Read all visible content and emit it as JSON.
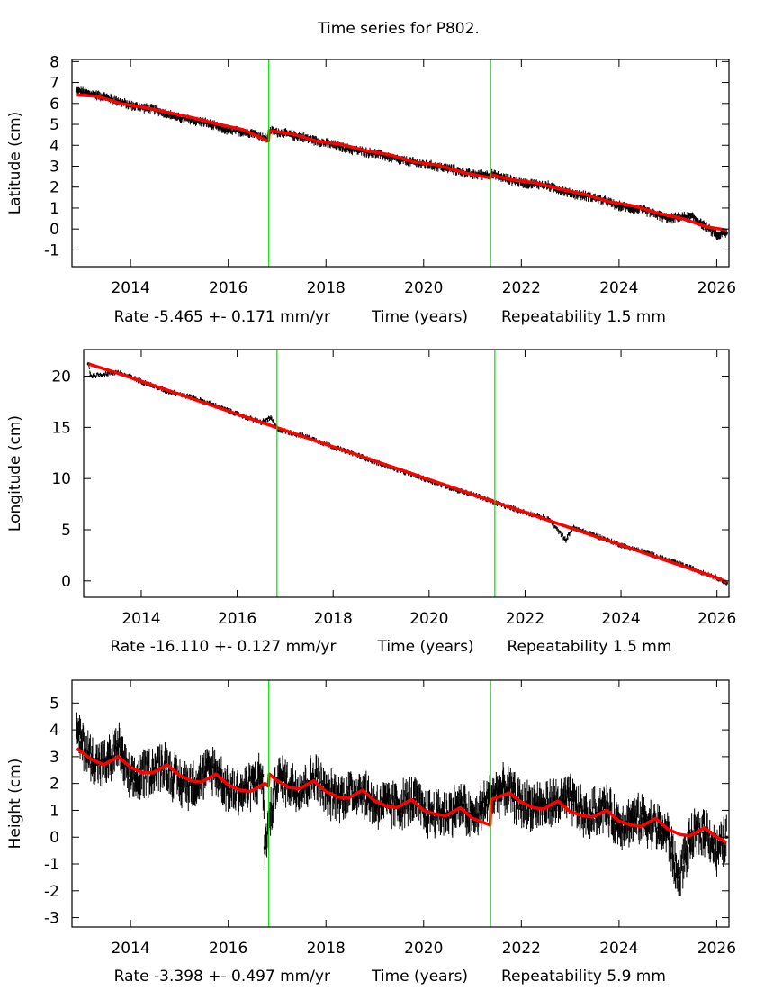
{
  "title": "Time series for P802.",
  "chart_data": [
    {
      "type": "scatter",
      "component": "latitude",
      "ylabel": "Latitude (cm)",
      "xlabel": "Time (years)",
      "rate_text": "Rate -5.465 +- 0.171 mm/yr",
      "repeatability_text": "Repeatability 1.5 mm",
      "xlim": [
        2012.8,
        2026.25
      ],
      "ylim": [
        -1.8,
        8.1
      ],
      "xticks": [
        2014,
        2016,
        2018,
        2020,
        2022,
        2024,
        2026
      ],
      "yticks": [
        -1,
        0,
        1,
        2,
        3,
        4,
        5,
        6,
        7,
        8
      ],
      "break_lines": [
        2016.83,
        2021.37
      ],
      "series": [
        {
          "name": "observations",
          "color": "#000000",
          "x": [
            2012.9,
            2013.5,
            2014.0,
            2014.5,
            2015.0,
            2015.5,
            2016.0,
            2016.5,
            2016.8,
            2016.85,
            2017.5,
            2018.0,
            2018.5,
            2019.0,
            2019.5,
            2020.0,
            2020.5,
            2021.0,
            2021.35,
            2021.4,
            2022.0,
            2022.5,
            2023.0,
            2023.5,
            2024.0,
            2024.5,
            2025.0,
            2025.5,
            2026.0,
            2026.2
          ],
          "y": [
            6.6,
            6.3,
            5.9,
            5.7,
            5.3,
            5.1,
            4.7,
            4.6,
            4.3,
            4.7,
            4.4,
            4.1,
            3.8,
            3.6,
            3.3,
            3.1,
            2.9,
            2.6,
            2.6,
            2.6,
            2.2,
            2.1,
            1.7,
            1.5,
            1.1,
            0.9,
            0.5,
            0.6,
            -0.3,
            -0.2
          ]
        },
        {
          "name": "model",
          "color": "#ff0000",
          "x": [
            2012.9,
            2013.3,
            2013.8,
            2014.3,
            2014.8,
            2015.3,
            2015.8,
            2016.3,
            2016.82,
            2016.84,
            2017.3,
            2017.8,
            2018.3,
            2018.8,
            2019.3,
            2019.8,
            2020.3,
            2020.8,
            2021.36,
            2021.38,
            2021.8,
            2022.3,
            2022.8,
            2023.3,
            2023.8,
            2024.3,
            2024.8,
            2025.3,
            2025.8,
            2026.2
          ],
          "y": [
            6.4,
            6.35,
            6.0,
            5.8,
            5.55,
            5.3,
            5.0,
            4.75,
            4.2,
            4.7,
            4.55,
            4.2,
            4.05,
            3.75,
            3.55,
            3.2,
            3.05,
            2.7,
            2.45,
            2.6,
            2.35,
            2.2,
            1.9,
            1.65,
            1.3,
            1.1,
            0.75,
            0.5,
            0.1,
            -0.05
          ]
        }
      ]
    },
    {
      "type": "scatter",
      "component": "longitude",
      "ylabel": "Longitude (cm)",
      "xlabel": "Time (years)",
      "rate_text": "Rate -16.110 +- 0.127 mm/yr",
      "repeatability_text": "Repeatability 1.5 mm",
      "xlim": [
        2012.8,
        2026.25
      ],
      "ylim": [
        -1.6,
        22.6
      ],
      "xticks": [
        2014,
        2016,
        2018,
        2020,
        2022,
        2024,
        2026
      ],
      "yticks": [
        0,
        5,
        10,
        15,
        20
      ],
      "break_lines": [
        2016.83,
        2021.37
      ],
      "series": [
        {
          "name": "observations",
          "color": "#000000",
          "x": [
            2012.9,
            2012.95,
            2013.5,
            2014.0,
            2014.5,
            2015.0,
            2015.5,
            2016.0,
            2016.5,
            2016.7,
            2016.85,
            2017.5,
            2018.0,
            2018.5,
            2019.0,
            2019.5,
            2020.0,
            2020.5,
            2021.0,
            2021.4,
            2022.0,
            2022.5,
            2022.85,
            2023.0,
            2023.5,
            2024.0,
            2024.5,
            2025.0,
            2025.5,
            2026.0,
            2026.2
          ],
          "y": [
            21.2,
            20.0,
            20.4,
            19.5,
            18.6,
            18.0,
            17.2,
            16.3,
            15.5,
            15.9,
            14.8,
            14.0,
            13.1,
            12.3,
            11.4,
            10.6,
            9.8,
            9.0,
            8.3,
            7.6,
            6.7,
            6.0,
            4.0,
            5.2,
            4.4,
            3.5,
            2.8,
            2.0,
            1.2,
            0.3,
            -0.2
          ]
        },
        {
          "name": "model",
          "color": "#ff0000",
          "x": [
            2012.9,
            2013.5,
            2014.0,
            2014.5,
            2015.0,
            2015.5,
            2016.0,
            2016.5,
            2017.0,
            2017.5,
            2018.0,
            2018.5,
            2019.0,
            2019.5,
            2020.0,
            2020.5,
            2021.0,
            2021.5,
            2022.0,
            2022.5,
            2023.0,
            2023.5,
            2024.0,
            2024.5,
            2025.0,
            2025.5,
            2026.0,
            2026.2
          ],
          "y": [
            21.2,
            20.3,
            19.5,
            18.7,
            17.9,
            17.1,
            16.3,
            15.5,
            14.7,
            13.9,
            13.1,
            12.3,
            11.5,
            10.7,
            9.9,
            9.1,
            8.3,
            7.5,
            6.7,
            5.9,
            5.1,
            4.3,
            3.5,
            2.7,
            1.9,
            1.1,
            0.3,
            -0.1
          ]
        }
      ]
    },
    {
      "type": "scatter",
      "component": "height",
      "ylabel": "Height (cm)",
      "xlabel": "Time (years)",
      "rate_text": "Rate -3.398 +- 0.497 mm/yr",
      "repeatability_text": "Repeatability 5.9 mm",
      "xlim": [
        2012.8,
        2026.25
      ],
      "ylim": [
        -3.35,
        5.85
      ],
      "xticks": [
        2014,
        2016,
        2018,
        2020,
        2022,
        2024,
        2026
      ],
      "yticks": [
        -3,
        -2,
        -1,
        0,
        1,
        2,
        3,
        4,
        5
      ],
      "break_lines": [
        2016.83,
        2021.37
      ],
      "series": [
        {
          "name": "observations",
          "color": "#000000",
          "x": [
            2012.9,
            2013.2,
            2013.5,
            2013.75,
            2014.0,
            2014.3,
            2014.7,
            2015.0,
            2015.3,
            2015.7,
            2016.0,
            2016.3,
            2016.7,
            2016.75,
            2017.0,
            2017.5,
            2017.8,
            2018.0,
            2018.3,
            2018.7,
            2019.0,
            2019.5,
            2019.8,
            2020.0,
            2020.5,
            2020.8,
            2021.0,
            2021.4,
            2021.7,
            2022.0,
            2022.5,
            2023.0,
            2023.3,
            2023.7,
            2024.0,
            2024.5,
            2025.0,
            2025.2,
            2025.5,
            2025.8,
            2026.0,
            2026.2
          ],
          "y": [
            3.8,
            2.9,
            2.7,
            3.4,
            2.0,
            2.4,
            2.7,
            2.0,
            2.0,
            2.6,
            1.8,
            1.7,
            2.3,
            -0.4,
            2.2,
            1.8,
            2.3,
            1.6,
            1.5,
            1.8,
            1.2,
            1.2,
            1.4,
            0.9,
            0.9,
            1.2,
            0.6,
            1.6,
            1.8,
            1.2,
            1.2,
            1.4,
            0.8,
            1.1,
            0.5,
            0.7,
            0.1,
            -1.5,
            0.0,
            0.3,
            -0.6,
            0.0
          ]
        },
        {
          "name": "model",
          "color": "#ff0000",
          "x": [
            2012.9,
            2013.2,
            2013.45,
            2013.75,
            2014.0,
            2014.25,
            2014.45,
            2014.75,
            2015.0,
            2015.25,
            2015.45,
            2015.75,
            2016.0,
            2016.25,
            2016.45,
            2016.75,
            2016.82,
            2016.84,
            2017.0,
            2017.25,
            2017.45,
            2017.75,
            2018.0,
            2018.25,
            2018.45,
            2018.75,
            2019.0,
            2019.25,
            2019.45,
            2019.75,
            2020.0,
            2020.25,
            2020.45,
            2020.75,
            2021.0,
            2021.36,
            2021.38,
            2021.75,
            2022.0,
            2022.25,
            2022.45,
            2022.75,
            2023.0,
            2023.25,
            2023.45,
            2023.75,
            2024.0,
            2024.25,
            2024.45,
            2024.75,
            2025.0,
            2025.25,
            2025.45,
            2025.75,
            2026.0,
            2026.2
          ],
          "y": [
            3.3,
            2.9,
            2.7,
            3.0,
            2.6,
            2.4,
            2.4,
            2.7,
            2.3,
            2.1,
            2.05,
            2.35,
            1.95,
            1.75,
            1.7,
            2.0,
            1.9,
            2.35,
            2.1,
            1.85,
            1.8,
            2.1,
            1.7,
            1.5,
            1.45,
            1.75,
            1.35,
            1.15,
            1.1,
            1.4,
            1.0,
            0.85,
            0.8,
            1.1,
            0.7,
            0.45,
            1.4,
            1.65,
            1.3,
            1.1,
            1.05,
            1.35,
            0.95,
            0.8,
            0.75,
            1.0,
            0.6,
            0.45,
            0.4,
            0.7,
            0.3,
            0.1,
            0.05,
            0.35,
            0.0,
            -0.2
          ]
        }
      ]
    }
  ]
}
